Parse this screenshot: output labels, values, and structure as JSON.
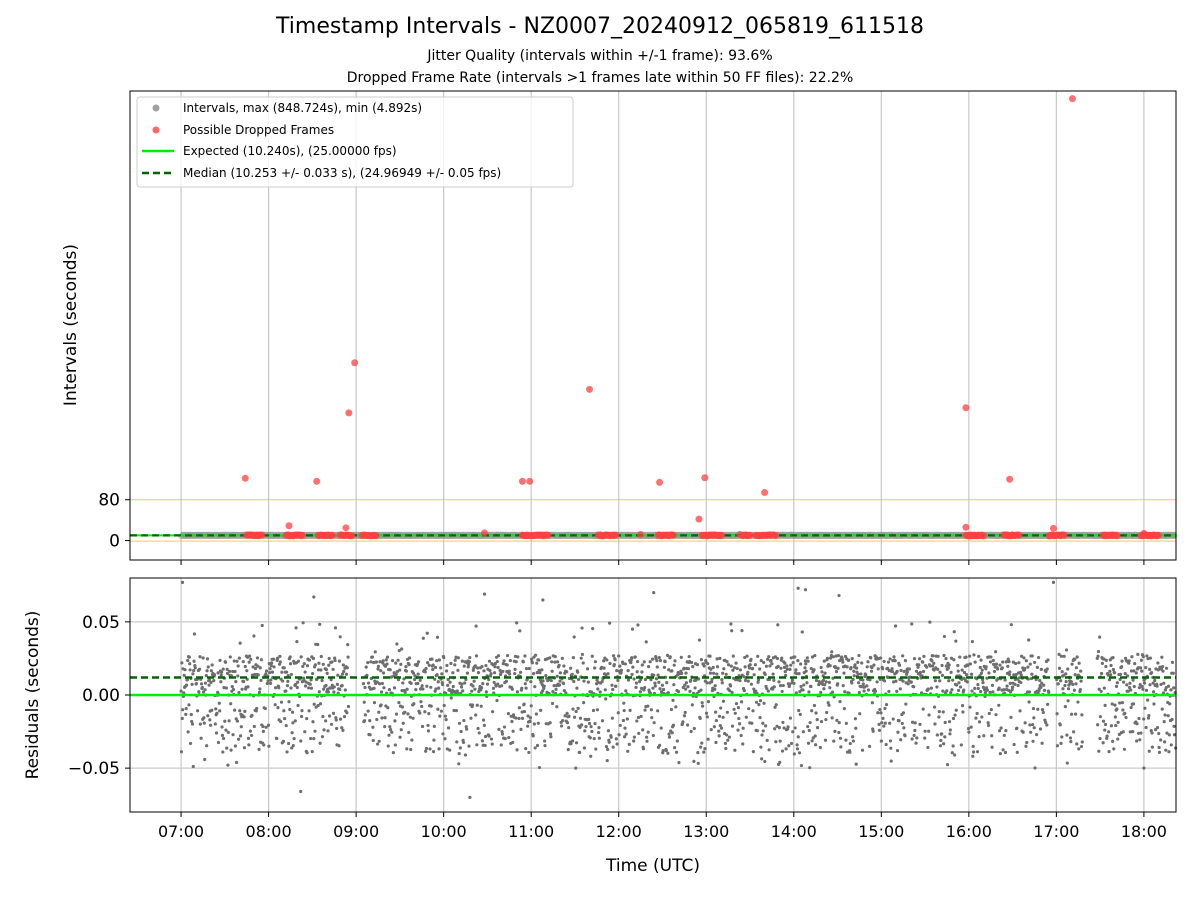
{
  "chart_data": [
    {
      "type": "scatter",
      "title": "Timestamp Intervals - NZ0007_20240912_065819_611518",
      "subtitle_1": "Jitter Quality (intervals within +/-1 frame): 93.6%",
      "subtitle_2": "Dropped Frame Rate (intervals >1 frames late within 50 FF files): 22.2%",
      "ylabel": "Intervals (seconds)",
      "xlim": [
        "06:25",
        "18:22"
      ],
      "ylim": [
        -38,
        880
      ],
      "yticks": [
        0,
        80
      ],
      "grid": "vertical",
      "legend_position": "top-left",
      "threshold_line": 80,
      "expected": 10.24,
      "median": 10.253,
      "legend": [
        {
          "label": "Intervals, max (848.724s), min (4.892s)",
          "marker": "dot",
          "color": "#a0a0a0"
        },
        {
          "label": "Possible Dropped Frames",
          "marker": "dot",
          "color": "#ff4040"
        },
        {
          "label": "Expected (10.240s), (25.00000 fps)",
          "marker": "solid-line",
          "color": "#00ee00"
        },
        {
          "label": "Median (10.253 +/- 0.033 s), (24.96949 +/- 0.05 fps)",
          "marker": "dashed-line",
          "color": "#006400"
        }
      ],
      "dropped_outliers": [
        {
          "x": "07:44",
          "y": 122
        },
        {
          "x": "08:14",
          "y": 29
        },
        {
          "x": "08:33",
          "y": 116
        },
        {
          "x": "08:53",
          "y": 25
        },
        {
          "x": "08:55",
          "y": 250
        },
        {
          "x": "08:59",
          "y": 348
        },
        {
          "x": "10:28",
          "y": 15
        },
        {
          "x": "10:54",
          "y": 116
        },
        {
          "x": "10:59",
          "y": 116
        },
        {
          "x": "11:40",
          "y": 296
        },
        {
          "x": "12:15",
          "y": 12
        },
        {
          "x": "12:28",
          "y": 114
        },
        {
          "x": "12:55",
          "y": 42
        },
        {
          "x": "12:59",
          "y": 123
        },
        {
          "x": "13:23",
          "y": 12
        },
        {
          "x": "13:40",
          "y": 94
        },
        {
          "x": "15:58",
          "y": 260
        },
        {
          "x": "15:58",
          "y": 26
        },
        {
          "x": "16:28",
          "y": 120
        },
        {
          "x": "16:58",
          "y": 24
        },
        {
          "x": "17:11",
          "y": 865
        },
        {
          "x": "18:00",
          "y": 14
        }
      ],
      "dropped_clusters": [
        [
          "07:45",
          "07:56"
        ],
        [
          "08:12",
          "08:24"
        ],
        [
          "08:34",
          "08:44"
        ],
        [
          "08:49",
          "08:57"
        ],
        [
          "09:04",
          "09:14"
        ],
        [
          "10:54",
          "11:12"
        ],
        [
          "11:46",
          "11:58"
        ],
        [
          "12:27",
          "12:38"
        ],
        [
          "12:57",
          "13:11"
        ],
        [
          "13:25",
          "13:30"
        ],
        [
          "13:34",
          "13:48"
        ],
        [
          "15:58",
          "16:10"
        ],
        [
          "16:24",
          "16:35"
        ],
        [
          "16:55",
          "17:06"
        ],
        [
          "17:32",
          "17:42"
        ],
        [
          "17:58",
          "18:10"
        ]
      ]
    },
    {
      "type": "scatter",
      "xlabel": "Time (UTC)",
      "ylabel": "Residuals (seconds)",
      "xticks": [
        "07:00",
        "08:00",
        "09:00",
        "10:00",
        "11:00",
        "12:00",
        "13:00",
        "14:00",
        "15:00",
        "16:00",
        "17:00",
        "18:00"
      ],
      "yticks": [
        "0.05",
        "0.00",
        "−0.05"
      ],
      "ylim": [
        -0.08,
        0.08
      ],
      "grid": "both",
      "expected_residual": 0.0,
      "median_residual": 0.012,
      "gaps": [
        [
          "08:55",
          "09:05"
        ],
        [
          "16:55",
          "17:00"
        ],
        [
          "17:18",
          "17:28"
        ]
      ],
      "sample_outliers": [
        {
          "x": "07:01",
          "y": 0.077
        },
        {
          "x": "08:22",
          "y": -0.066
        },
        {
          "x": "08:31",
          "y": 0.067
        },
        {
          "x": "10:18",
          "y": -0.07
        },
        {
          "x": "10:28",
          "y": 0.069
        },
        {
          "x": "11:08",
          "y": 0.065
        },
        {
          "x": "12:24",
          "y": 0.07
        },
        {
          "x": "14:03",
          "y": 0.073
        },
        {
          "x": "14:08",
          "y": 0.072
        },
        {
          "x": "14:31",
          "y": 0.068
        },
        {
          "x": "16:58",
          "y": 0.077
        },
        {
          "x": "18:00",
          "y": -0.05
        }
      ]
    }
  ]
}
